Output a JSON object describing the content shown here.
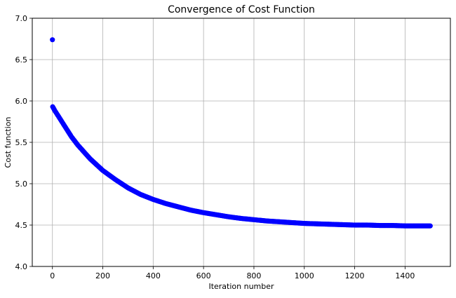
{
  "chart_data": {
    "type": "scatter",
    "title": "Convergence of Cost Function",
    "xlabel": "Iteration number",
    "ylabel": "Cost function",
    "xlim": [
      -80,
      1580
    ],
    "ylim": [
      4.0,
      7.0
    ],
    "xticks": [
      0,
      200,
      400,
      600,
      800,
      1000,
      1200,
      1400
    ],
    "yticks": [
      4.0,
      4.5,
      5.0,
      5.5,
      6.0,
      6.5,
      7.0
    ],
    "xtick_labels": [
      "0",
      "200",
      "400",
      "600",
      "800",
      "1000",
      "1200",
      "1400"
    ],
    "ytick_labels": [
      "4.0",
      "4.5",
      "5.0",
      "5.5",
      "6.0",
      "6.5",
      "7.0"
    ],
    "grid": true,
    "marker_color": "#0000ff",
    "series": [
      {
        "x": [
          0,
          1,
          10,
          25,
          50,
          75,
          100,
          150,
          200,
          250,
          300,
          350,
          400,
          450,
          500,
          550,
          600,
          650,
          700,
          750,
          800,
          850,
          900,
          950,
          1000,
          1050,
          1100,
          1150,
          1200,
          1250,
          1300,
          1350,
          1400,
          1450,
          1500
        ],
        "y": [
          6.74,
          5.93,
          5.88,
          5.81,
          5.69,
          5.57,
          5.47,
          5.3,
          5.16,
          5.05,
          4.95,
          4.87,
          4.81,
          4.76,
          4.72,
          4.68,
          4.65,
          4.625,
          4.6,
          4.58,
          4.565,
          4.55,
          4.54,
          4.53,
          4.52,
          4.515,
          4.51,
          4.505,
          4.5,
          4.5,
          4.495,
          4.495,
          4.49,
          4.49,
          4.49
        ]
      }
    ]
  }
}
